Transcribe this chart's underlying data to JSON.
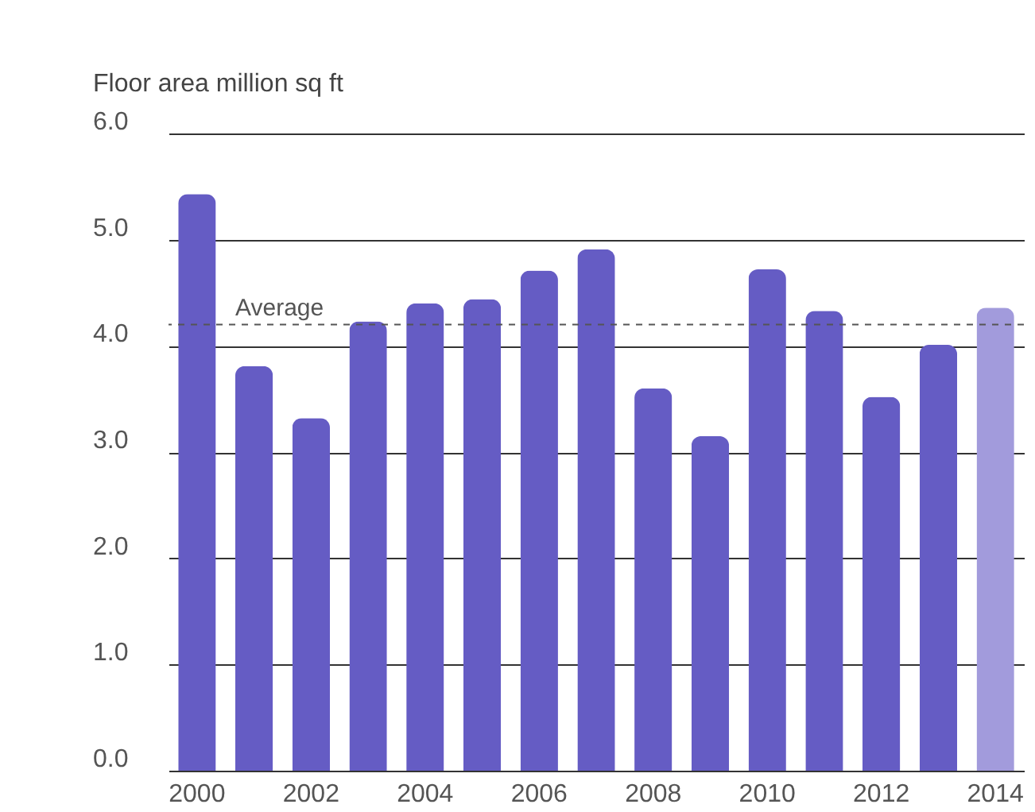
{
  "chart_data": {
    "type": "bar",
    "ylabel": "Floor area million sq ft",
    "categories": [
      "2000",
      null,
      "2002",
      null,
      "2004",
      null,
      "2006",
      null,
      "2008",
      null,
      "2010",
      null,
      "2012",
      null,
      "2014"
    ],
    "values": [
      5.43,
      3.81,
      3.32,
      4.23,
      4.4,
      4.44,
      4.71,
      4.91,
      3.6,
      3.15,
      4.72,
      4.33,
      3.52,
      4.01,
      4.36
    ],
    "colors": [
      "#655cc4",
      "#655cc4",
      "#655cc4",
      "#655cc4",
      "#655cc4",
      "#655cc4",
      "#655cc4",
      "#655cc4",
      "#655cc4",
      "#655cc4",
      "#655cc4",
      "#655cc4",
      "#655cc4",
      "#655cc4",
      "#a29bdc"
    ],
    "ylim": [
      0,
      6
    ],
    "yticks": [
      {
        "value": 0,
        "label": "0.0"
      },
      {
        "value": 1,
        "label": "1.0"
      },
      {
        "value": 2,
        "label": "2.0"
      },
      {
        "value": 3,
        "label": "3.0"
      },
      {
        "value": 4,
        "label": "4.0"
      },
      {
        "value": 5,
        "label": "5.0"
      },
      {
        "value": 6,
        "label": "6.0"
      }
    ],
    "grid": "y",
    "ref_lines": [
      {
        "axis": "y",
        "value": 4.2,
        "label": "Average",
        "color": "#555555",
        "line_style": "dashed"
      }
    ]
  }
}
